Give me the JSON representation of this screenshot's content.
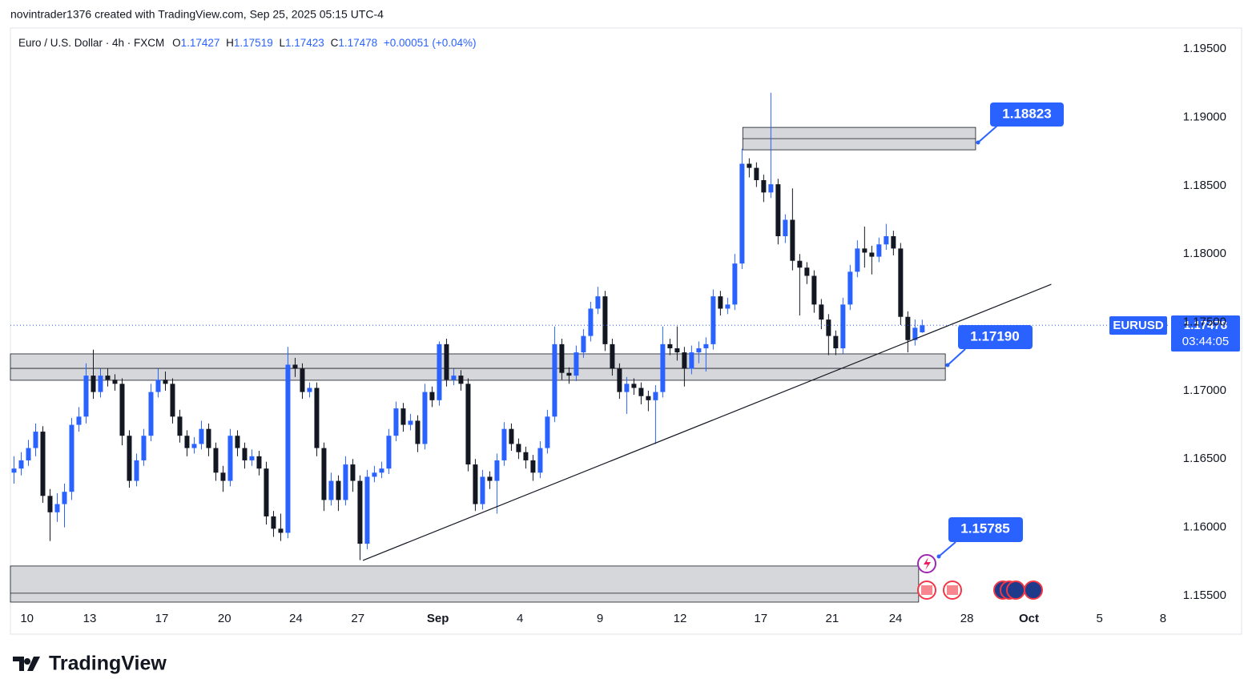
{
  "header": {
    "credit": "novintrader1376 created with TradingView.com, Sep 25, 2025 05:15 UTC-4",
    "logo": "TradingView"
  },
  "legend": {
    "symbol": "Euro / U.S. Dollar · 4h · FXCM",
    "labels": [
      "O",
      "H",
      "L",
      "C"
    ],
    "change": "+0.00051 (+0.04%)"
  },
  "price_tag": {
    "symbol": "EURUSD",
    "countdown": "03:44:05"
  },
  "annotations": [
    "1.18823",
    "1.17190",
    "1.15785"
  ],
  "chart_data": {
    "type": "candlestick",
    "up_color": "#2962ff",
    "down_color": "#131722",
    "grid": false,
    "xlim": [
      0,
      160.8
    ],
    "ylim": [
      1.15406,
      1.19653
    ],
    "xticks": [
      {
        "value": 2.3,
        "label": "10"
      },
      {
        "value": 11.0,
        "label": "13"
      },
      {
        "value": 21.0,
        "label": "17"
      },
      {
        "value": 29.7,
        "label": "20"
      },
      {
        "value": 39.6,
        "label": "24"
      },
      {
        "value": 48.2,
        "label": "27"
      },
      {
        "value": 59.3,
        "label": "Sep"
      },
      {
        "value": 70.7,
        "label": "4"
      },
      {
        "value": 81.8,
        "label": "9"
      },
      {
        "value": 92.9,
        "label": "12"
      },
      {
        "value": 104.1,
        "label": "17"
      },
      {
        "value": 114.0,
        "label": "21"
      },
      {
        "value": 122.8,
        "label": "24"
      },
      {
        "value": 132.7,
        "label": "28"
      },
      {
        "value": 141.3,
        "label": "Oct"
      },
      {
        "value": 151.1,
        "label": "5"
      },
      {
        "value": 159.9,
        "label": "8"
      }
    ],
    "yticks": [
      {
        "value": 1.155,
        "label": "1.15500"
      },
      {
        "value": 1.16,
        "label": "1.16000"
      },
      {
        "value": 1.165,
        "label": "1.16500"
      },
      {
        "value": 1.17,
        "label": "1.17000"
      },
      {
        "value": 1.175,
        "label": "1.17500"
      },
      {
        "value": 1.18,
        "label": "1.18000"
      },
      {
        "value": 1.185,
        "label": "1.18500"
      },
      {
        "value": 1.19,
        "label": "1.19000"
      },
      {
        "value": 1.195,
        "label": "1.19500"
      }
    ],
    "zones": [
      {
        "top": 1.18926,
        "bottom": 1.18762,
        "mid": 1.18844,
        "x0": 101.6,
        "x1": 133.9
      },
      {
        "top": 1.17269,
        "bottom": 1.17076,
        "mid": 1.17163,
        "x0": 0,
        "x1": 129.7
      },
      {
        "top": 1.15717,
        "bottom": 1.15453,
        "mid": 1.15518,
        "x0": 0,
        "x1": 126
      }
    ],
    "trendline": {
      "x0": 48.9,
      "y0": 1.15758,
      "x1": 144.4,
      "y1": 1.17778
    },
    "ohlc": [
      [
        1.164,
        1.1652,
        1.1632,
        1.1643
      ],
      [
        1.1643,
        1.1655,
        1.1638,
        1.1649
      ],
      [
        1.1649,
        1.1664,
        1.1645,
        1.1658
      ],
      [
        1.1658,
        1.1676,
        1.1652,
        1.167
      ],
      [
        1.167,
        1.1674,
        1.1618,
        1.1623
      ],
      [
        1.1623,
        1.1628,
        1.159,
        1.1611
      ],
      [
        1.1611,
        1.1625,
        1.1604,
        1.1617
      ],
      [
        1.1617,
        1.1632,
        1.16,
        1.1626
      ],
      [
        1.1626,
        1.168,
        1.162,
        1.1675
      ],
      [
        1.1675,
        1.1688,
        1.167,
        1.1681
      ],
      [
        1.1681,
        1.172,
        1.1676,
        1.1711
      ],
      [
        1.1711,
        1.173,
        1.1694,
        1.1699
      ],
      [
        1.1699,
        1.1716,
        1.1695,
        1.1711
      ],
      [
        1.1711,
        1.1716,
        1.1703,
        1.1708
      ],
      [
        1.1708,
        1.1712,
        1.17,
        1.1705
      ],
      [
        1.1705,
        1.1709,
        1.166,
        1.1667
      ],
      [
        1.1667,
        1.1671,
        1.1629,
        1.1634
      ],
      [
        1.1634,
        1.1654,
        1.163,
        1.1649
      ],
      [
        1.1649,
        1.1672,
        1.1645,
        1.1667
      ],
      [
        1.1667,
        1.1705,
        1.1663,
        1.1699
      ],
      [
        1.1699,
        1.1716,
        1.1695,
        1.1708
      ],
      [
        1.1708,
        1.1714,
        1.17,
        1.1705
      ],
      [
        1.1705,
        1.1709,
        1.1676,
        1.1681
      ],
      [
        1.1681,
        1.1686,
        1.1662,
        1.1667
      ],
      [
        1.1667,
        1.1671,
        1.1652,
        1.1658
      ],
      [
        1.1658,
        1.1666,
        1.1654,
        1.1661
      ],
      [
        1.1661,
        1.1678,
        1.1657,
        1.1672
      ],
      [
        1.1672,
        1.1676,
        1.1652,
        1.1658
      ],
      [
        1.1658,
        1.1662,
        1.1634,
        1.164
      ],
      [
        1.164,
        1.1645,
        1.1626,
        1.1634
      ],
      [
        1.1634,
        1.1672,
        1.163,
        1.1667
      ],
      [
        1.1667,
        1.1671,
        1.1652,
        1.1658
      ],
      [
        1.1658,
        1.1662,
        1.1643,
        1.1649
      ],
      [
        1.1649,
        1.1657,
        1.1645,
        1.1652
      ],
      [
        1.1652,
        1.1656,
        1.1638,
        1.1643
      ],
      [
        1.1643,
        1.1648,
        1.1602,
        1.1608
      ],
      [
        1.1608,
        1.1612,
        1.1593,
        1.1599
      ],
      [
        1.1599,
        1.161,
        1.159,
        1.1596
      ],
      [
        1.1596,
        1.1732,
        1.1592,
        1.1719
      ],
      [
        1.1719,
        1.1724,
        1.171,
        1.1716
      ],
      [
        1.1716,
        1.172,
        1.1694,
        1.1699
      ],
      [
        1.1699,
        1.1706,
        1.1695,
        1.1702
      ],
      [
        1.1702,
        1.1706,
        1.1652,
        1.1658
      ],
      [
        1.1658,
        1.1662,
        1.1612,
        1.162
      ],
      [
        1.162,
        1.164,
        1.1616,
        1.1634
      ],
      [
        1.1634,
        1.1638,
        1.1612,
        1.162
      ],
      [
        1.162,
        1.1652,
        1.1616,
        1.1646
      ],
      [
        1.1646,
        1.165,
        1.1626,
        1.1634
      ],
      [
        1.1634,
        1.1638,
        1.1576,
        1.1588
      ],
      [
        1.1588,
        1.1642,
        1.1584,
        1.1637
      ],
      [
        1.1637,
        1.1645,
        1.1633,
        1.164
      ],
      [
        1.164,
        1.1648,
        1.1636,
        1.1643
      ],
      [
        1.1643,
        1.1672,
        1.1639,
        1.1667
      ],
      [
        1.1667,
        1.1692,
        1.1663,
        1.1687
      ],
      [
        1.1687,
        1.1691,
        1.167,
        1.1675
      ],
      [
        1.1675,
        1.1683,
        1.1671,
        1.1678
      ],
      [
        1.1678,
        1.1682,
        1.1655,
        1.1661
      ],
      [
        1.1661,
        1.1705,
        1.1657,
        1.1699
      ],
      [
        1.1699,
        1.1703,
        1.1688,
        1.1693
      ],
      [
        1.1693,
        1.1736,
        1.1689,
        1.1734
      ],
      [
        1.1734,
        1.1738,
        1.1703,
        1.1708
      ],
      [
        1.1708,
        1.1716,
        1.1704,
        1.1711
      ],
      [
        1.1711,
        1.1715,
        1.17,
        1.1705
      ],
      [
        1.1705,
        1.1709,
        1.1641,
        1.1646
      ],
      [
        1.1646,
        1.165,
        1.1612,
        1.1617
      ],
      [
        1.1617,
        1.1642,
        1.1613,
        1.1637
      ],
      [
        1.1637,
        1.1641,
        1.1628,
        1.1634
      ],
      [
        1.1634,
        1.1654,
        1.161,
        1.1649
      ],
      [
        1.1649,
        1.1677,
        1.1645,
        1.1672
      ],
      [
        1.1672,
        1.1676,
        1.1656,
        1.1661
      ],
      [
        1.1661,
        1.1665,
        1.165,
        1.1655
      ],
      [
        1.1655,
        1.1659,
        1.1643,
        1.1649
      ],
      [
        1.1649,
        1.1653,
        1.1634,
        1.164
      ],
      [
        1.164,
        1.1663,
        1.1636,
        1.1658
      ],
      [
        1.1658,
        1.1686,
        1.1654,
        1.1681
      ],
      [
        1.1681,
        1.1747,
        1.1677,
        1.1734
      ],
      [
        1.1734,
        1.1738,
        1.1708,
        1.1713
      ],
      [
        1.1713,
        1.1717,
        1.1705,
        1.1711
      ],
      [
        1.1711,
        1.1733,
        1.1707,
        1.1728
      ],
      [
        1.1728,
        1.1745,
        1.1724,
        1.174
      ],
      [
        1.174,
        1.1765,
        1.1736,
        1.176
      ],
      [
        1.176,
        1.1776,
        1.1756,
        1.1769
      ],
      [
        1.1769,
        1.1773,
        1.1729,
        1.1734
      ],
      [
        1.1734,
        1.1738,
        1.1711,
        1.1716
      ],
      [
        1.1716,
        1.172,
        1.1694,
        1.1699
      ],
      [
        1.1699,
        1.171,
        1.1683,
        1.1705
      ],
      [
        1.1705,
        1.1709,
        1.1697,
        1.1702
      ],
      [
        1.1702,
        1.1706,
        1.169,
        1.1696
      ],
      [
        1.1696,
        1.17,
        1.1685,
        1.1693
      ],
      [
        1.1693,
        1.1704,
        1.1661,
        1.1699
      ],
      [
        1.1699,
        1.1747,
        1.1695,
        1.1734
      ],
      [
        1.1734,
        1.1738,
        1.1726,
        1.1731
      ],
      [
        1.1731,
        1.1747,
        1.1722,
        1.1728
      ],
      [
        1.1728,
        1.1732,
        1.1703,
        1.1716
      ],
      [
        1.1716,
        1.1733,
        1.1712,
        1.1728
      ],
      [
        1.1728,
        1.1736,
        1.172,
        1.1731
      ],
      [
        1.1731,
        1.1739,
        1.1714,
        1.1734
      ],
      [
        1.1734,
        1.1774,
        1.173,
        1.1769
      ],
      [
        1.1769,
        1.1773,
        1.1755,
        1.176
      ],
      [
        1.176,
        1.1768,
        1.1756,
        1.1763
      ],
      [
        1.1763,
        1.18,
        1.1759,
        1.1793
      ],
      [
        1.1793,
        1.1877,
        1.1789,
        1.1866
      ],
      [
        1.1866,
        1.187,
        1.1856,
        1.1863
      ],
      [
        1.1863,
        1.1867,
        1.1849,
        1.1854
      ],
      [
        1.1854,
        1.1858,
        1.1838,
        1.1845
      ],
      [
        1.1845,
        1.1918,
        1.1841,
        1.1851
      ],
      [
        1.1851,
        1.1855,
        1.1807,
        1.1813
      ],
      [
        1.1813,
        1.1829,
        1.1808,
        1.1825
      ],
      [
        1.1825,
        1.1848,
        1.1788,
        1.1795
      ],
      [
        1.1795,
        1.18,
        1.1755,
        1.179
      ],
      [
        1.179,
        1.1794,
        1.1778,
        1.1784
      ],
      [
        1.1784,
        1.1788,
        1.1757,
        1.1763
      ],
      [
        1.1763,
        1.1767,
        1.1745,
        1.1752
      ],
      [
        1.1752,
        1.1756,
        1.1726,
        1.174
      ],
      [
        1.174,
        1.1744,
        1.1726,
        1.1731
      ],
      [
        1.1731,
        1.1768,
        1.1727,
        1.1763
      ],
      [
        1.1763,
        1.1792,
        1.1759,
        1.1787
      ],
      [
        1.1787,
        1.181,
        1.1783,
        1.1804
      ],
      [
        1.1804,
        1.182,
        1.179,
        1.1801
      ],
      [
        1.1801,
        1.1806,
        1.1785,
        1.1798
      ],
      [
        1.1798,
        1.1812,
        1.1794,
        1.1807
      ],
      [
        1.1807,
        1.1822,
        1.1803,
        1.1813
      ],
      [
        1.1813,
        1.1817,
        1.1799,
        1.1804
      ],
      [
        1.1804,
        1.1808,
        1.1748,
        1.1754
      ],
      [
        1.1754,
        1.1758,
        1.1728,
        1.1737
      ],
      [
        1.1737,
        1.1752,
        1.1733,
        1.1746
      ],
      [
        1.17427,
        1.17519,
        1.17423,
        1.17478
      ]
    ]
  }
}
